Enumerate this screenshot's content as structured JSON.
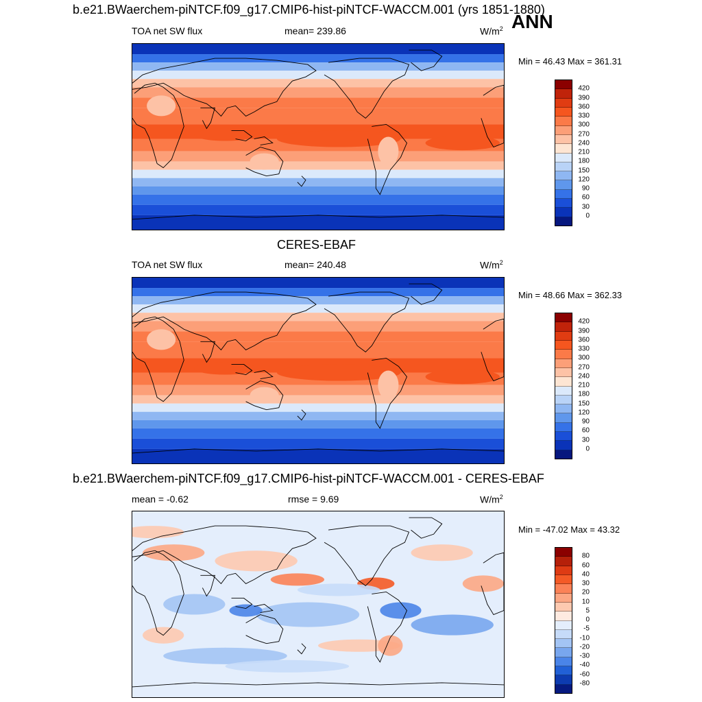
{
  "header": {
    "title": "b.e21.BWaerchem-piNTCF.f09_g17.CMIP6-hist-piNTCF-WACCM.001 (yrs 1851-1880)",
    "season": "ANN"
  },
  "panel1": {
    "variable": "TOA net SW flux",
    "mean": "mean= 239.86",
    "units": "W/m",
    "units_sup": "2",
    "minmax": "Min =  46.43 Max = 361.31",
    "colorbar_labels": [
      "420",
      "390",
      "360",
      "330",
      "300",
      "270",
      "240",
      "210",
      "180",
      "150",
      "120",
      "90",
      "60",
      "30",
      "0"
    ]
  },
  "panel2": {
    "title": "CERES-EBAF",
    "variable": "TOA net SW flux",
    "mean": "mean= 240.48",
    "units": "W/m",
    "units_sup": "2",
    "minmax": "Min =  48.66 Max = 362.33",
    "colorbar_labels": [
      "420",
      "390",
      "360",
      "330",
      "300",
      "270",
      "240",
      "210",
      "180",
      "150",
      "120",
      "90",
      "60",
      "30",
      "0"
    ]
  },
  "panel3": {
    "title": "b.e21.BWaerchem-piNTCF.f09_g17.CMIP6-hist-piNTCF-WACCM.001 - CERES-EBAF",
    "mean": "mean =  -0.62",
    "rmse": "rmse =   9.69",
    "units": "W/m",
    "units_sup": "2",
    "minmax": "Min = -47.02 Max =  43.32",
    "colorbar_labels": [
      "80",
      "60",
      "40",
      "30",
      "20",
      "10",
      "5",
      "0",
      "-5",
      "-10",
      "-20",
      "-30",
      "-40",
      "-60",
      "-80"
    ]
  },
  "colors": {
    "flux_scale": [
      "#8b0000",
      "#c0230a",
      "#e03c12",
      "#f5561f",
      "#fb7a48",
      "#fc9f78",
      "#fdc2a6",
      "#fde5d3",
      "#dbe9fb",
      "#b9d3f7",
      "#8fb7f2",
      "#5f97ec",
      "#3572e8",
      "#1a4fd8",
      "#0a33b8",
      "#06177e"
    ],
    "diff_scale": [
      "#8b0000",
      "#b5200a",
      "#de3b14",
      "#f45a26",
      "#fb8257",
      "#fca784",
      "#fdc9b0",
      "#feeae0",
      "#e4eefc",
      "#c6dbf9",
      "#a3c4f4",
      "#78a6ee",
      "#4a84e8",
      "#2160d6",
      "#0d3bb0",
      "#061a80"
    ],
    "coastline": "#000000"
  }
}
